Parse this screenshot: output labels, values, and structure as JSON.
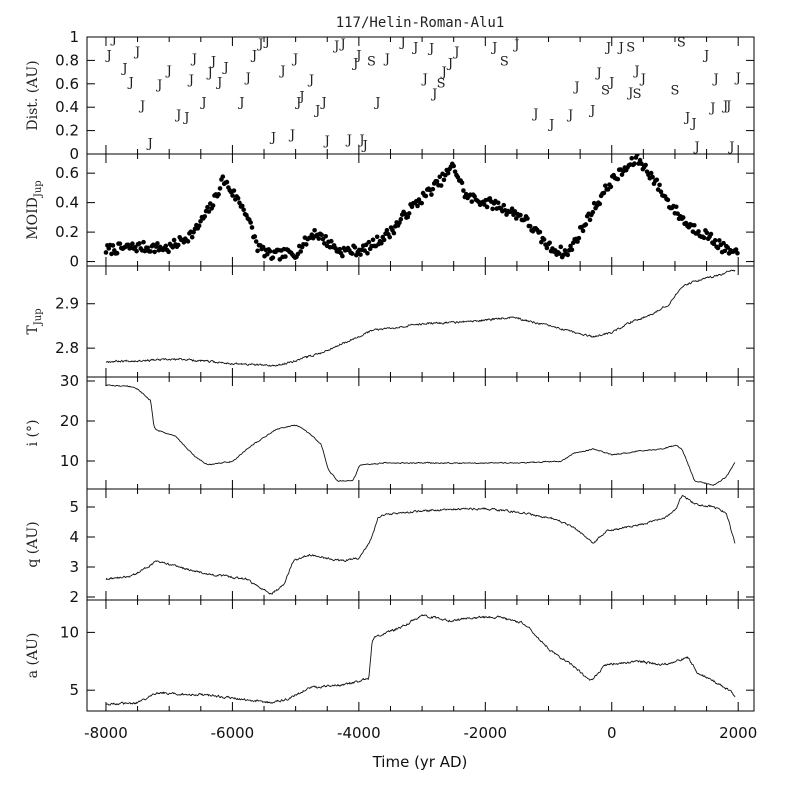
{
  "chart_data": {
    "type": "line",
    "title": "117/Helin-Roman-Alu1",
    "xlabel": "Time (yr AD)",
    "xlim": [
      -8300,
      2250
    ],
    "x_ticks": [
      "-8000",
      "-6000",
      "-4000",
      "-2000",
      "0",
      "2000"
    ],
    "panels": [
      {
        "id": "dist",
        "ylabel": "Dist. (AU)",
        "type": "scatter",
        "ylim": [
          0,
          1
        ],
        "y_ticks": [
          "0",
          "0.2",
          "0.4",
          "0.6",
          "0.8",
          "1"
        ],
        "series": [
          {
            "name": "J",
            "points": [
              [
                -7950,
                0.85
              ],
              [
                -7870,
                0.99
              ],
              [
                -7700,
                0.74
              ],
              [
                -7600,
                0.62
              ],
              [
                -7500,
                0.88
              ],
              [
                -7420,
                0.42
              ],
              [
                -7300,
                0.1
              ],
              [
                -7150,
                0.6
              ],
              [
                -7000,
                0.72
              ],
              [
                -6850,
                0.34
              ],
              [
                -6720,
                0.32
              ],
              [
                -6650,
                0.64
              ],
              [
                -6600,
                0.82
              ],
              [
                -6450,
                0.45
              ],
              [
                -6350,
                0.7
              ],
              [
                -6300,
                0.8
              ],
              [
                -6200,
                0.62
              ],
              [
                -6100,
                0.75
              ],
              [
                -5850,
                0.45
              ],
              [
                -5750,
                0.66
              ],
              [
                -5650,
                0.85
              ],
              [
                -5550,
                0.95
              ],
              [
                -5450,
                0.97
              ],
              [
                -5350,
                0.15
              ],
              [
                -5200,
                0.72
              ],
              [
                -5050,
                0.17
              ],
              [
                -5000,
                0.82
              ],
              [
                -4950,
                0.45
              ],
              [
                -4900,
                0.5
              ],
              [
                -4750,
                0.64
              ],
              [
                -4650,
                0.38
              ],
              [
                -4550,
                0.45
              ],
              [
                -4500,
                0.12
              ],
              [
                -4350,
                0.93
              ],
              [
                -4250,
                0.95
              ],
              [
                -4150,
                0.13
              ],
              [
                -4050,
                0.78
              ],
              [
                -4000,
                0.85
              ],
              [
                -3950,
                0.13
              ],
              [
                -3900,
                0.08
              ],
              [
                -3700,
                0.45
              ],
              [
                -3550,
                0.82
              ],
              [
                -3300,
                0.96
              ],
              [
                -3100,
                0.92
              ],
              [
                -2950,
                0.65
              ],
              [
                -2850,
                0.91
              ],
              [
                -2800,
                0.52
              ],
              [
                -2650,
                0.71
              ],
              [
                -2550,
                0.78
              ],
              [
                -2450,
                0.88
              ],
              [
                -1850,
                0.92
              ],
              [
                -1500,
                0.94
              ],
              [
                -1200,
                0.35
              ],
              [
                -950,
                0.26
              ],
              [
                -650,
                0.34
              ],
              [
                -550,
                0.58
              ],
              [
                -300,
                0.38
              ],
              [
                -200,
                0.7
              ],
              [
                -50,
                0.92
              ],
              [
                0,
                0.62
              ],
              [
                150,
                0.92
              ],
              [
                300,
                0.53
              ],
              [
                400,
                0.72
              ],
              [
                500,
                0.65
              ],
              [
                1200,
                0.32
              ],
              [
                1300,
                0.27
              ],
              [
                1350,
                0.07
              ],
              [
                1500,
                0.85
              ],
              [
                1600,
                0.4
              ],
              [
                1650,
                0.65
              ],
              [
                1800,
                0.42
              ],
              [
                1850,
                0.42
              ],
              [
                1900,
                0.07
              ],
              [
                2000,
                0.66
              ]
            ]
          },
          {
            "name": "S",
            "points": [
              [
                -3800,
                0.8
              ],
              [
                -2700,
                0.61
              ],
              [
                -1700,
                0.8
              ],
              [
                -100,
                0.55
              ],
              [
                300,
                0.92
              ],
              [
                400,
                0.52
              ],
              [
                1000,
                0.55
              ],
              [
                1100,
                0.96
              ]
            ]
          }
        ]
      },
      {
        "id": "moid",
        "ylabel": "MOID_Jup",
        "ylabel_main": "MOID",
        "ylabel_sub": "Jup",
        "type": "scatter",
        "ylim": [
          -0.03,
          0.73
        ],
        "y_ticks": [
          "0",
          "0.2",
          "0.4",
          "0.6"
        ],
        "knots": [
          [
            -8000,
            0.08
          ],
          [
            -7500,
            0.1
          ],
          [
            -7000,
            0.09
          ],
          [
            -6600,
            0.2
          ],
          [
            -6300,
            0.4
          ],
          [
            -6150,
            0.56
          ],
          [
            -5800,
            0.35
          ],
          [
            -5600,
            0.1
          ],
          [
            -5400,
            0.04
          ],
          [
            -5000,
            0.06
          ],
          [
            -4700,
            0.2
          ],
          [
            -4300,
            0.07
          ],
          [
            -3900,
            0.08
          ],
          [
            -3500,
            0.2
          ],
          [
            -3200,
            0.35
          ],
          [
            -2700,
            0.55
          ],
          [
            -2500,
            0.65
          ],
          [
            -2300,
            0.44
          ],
          [
            -1800,
            0.38
          ],
          [
            -1400,
            0.3
          ],
          [
            -1000,
            0.1
          ],
          [
            -700,
            0.05
          ],
          [
            -500,
            0.2
          ],
          [
            -300,
            0.35
          ],
          [
            0,
            0.55
          ],
          [
            200,
            0.62
          ],
          [
            400,
            0.7
          ],
          [
            600,
            0.6
          ],
          [
            900,
            0.4
          ],
          [
            1200,
            0.25
          ],
          [
            1500,
            0.18
          ],
          [
            1800,
            0.08
          ],
          [
            2000,
            0.04
          ]
        ],
        "noise": 0.035
      },
      {
        "id": "tjup",
        "ylabel": "T_Jup",
        "ylabel_main": "T",
        "ylabel_sub": "Jup",
        "type": "line",
        "ylim": [
          2.735,
          2.985
        ],
        "y_ticks": [
          "2.8",
          "2.9"
        ],
        "y_tick_values": [
          2.8,
          2.9
        ],
        "knots": [
          [
            -8000,
            2.77
          ],
          [
            -6800,
            2.775
          ],
          [
            -6000,
            2.765
          ],
          [
            -5300,
            2.76
          ],
          [
            -4600,
            2.79
          ],
          [
            -3800,
            2.84
          ],
          [
            -3000,
            2.855
          ],
          [
            -2200,
            2.86
          ],
          [
            -1600,
            2.87
          ],
          [
            -1000,
            2.85
          ],
          [
            -600,
            2.835
          ],
          [
            -300,
            2.825
          ],
          [
            0,
            2.835
          ],
          [
            300,
            2.86
          ],
          [
            600,
            2.875
          ],
          [
            900,
            2.9
          ],
          [
            1100,
            2.94
          ],
          [
            1400,
            2.955
          ],
          [
            1700,
            2.965
          ],
          [
            2000,
            2.98
          ]
        ],
        "noise": 0.004
      },
      {
        "id": "incl",
        "ylabel": "i (°)",
        "type": "line",
        "ylim": [
          3,
          31
        ],
        "y_ticks": [
          "10",
          "20",
          "30"
        ],
        "knots": [
          [
            -8000,
            29
          ],
          [
            -7550,
            28.5
          ],
          [
            -7300,
            25
          ],
          [
            -7250,
            18
          ],
          [
            -6900,
            16
          ],
          [
            -6600,
            11
          ],
          [
            -6400,
            9
          ],
          [
            -6000,
            10
          ],
          [
            -5700,
            14
          ],
          [
            -5300,
            18
          ],
          [
            -5000,
            19
          ],
          [
            -4800,
            17
          ],
          [
            -4600,
            14
          ],
          [
            -4500,
            8
          ],
          [
            -4350,
            5
          ],
          [
            -4100,
            5
          ],
          [
            -4000,
            9
          ],
          [
            -3600,
            9.5
          ],
          [
            -2500,
            9.5
          ],
          [
            -1500,
            9.5
          ],
          [
            -800,
            10
          ],
          [
            -600,
            12
          ],
          [
            -300,
            13
          ],
          [
            0,
            11.5
          ],
          [
            400,
            12.5
          ],
          [
            800,
            13
          ],
          [
            1000,
            14
          ],
          [
            1100,
            13
          ],
          [
            1300,
            5
          ],
          [
            1600,
            4
          ],
          [
            1800,
            6
          ],
          [
            1950,
            10
          ]
        ],
        "noise": 0.25
      },
      {
        "id": "q",
        "ylabel": "q (AU)",
        "type": "line",
        "ylim": [
          1.9,
          5.6
        ],
        "y_ticks": [
          "2",
          "3",
          "4",
          "5"
        ],
        "knots": [
          [
            -8000,
            2.6
          ],
          [
            -7600,
            2.7
          ],
          [
            -7200,
            3.2
          ],
          [
            -6500,
            2.8
          ],
          [
            -5800,
            2.6
          ],
          [
            -5400,
            2.1
          ],
          [
            -5200,
            2.4
          ],
          [
            -5050,
            3.2
          ],
          [
            -4800,
            3.4
          ],
          [
            -4300,
            3.2
          ],
          [
            -4000,
            3.3
          ],
          [
            -3800,
            4.0
          ],
          [
            -3700,
            4.7
          ],
          [
            -3400,
            4.8
          ],
          [
            -2800,
            4.9
          ],
          [
            -2000,
            4.95
          ],
          [
            -1400,
            4.8
          ],
          [
            -900,
            4.6
          ],
          [
            -600,
            4.3
          ],
          [
            -300,
            3.8
          ],
          [
            -100,
            4.2
          ],
          [
            400,
            4.4
          ],
          [
            800,
            4.6
          ],
          [
            1000,
            4.9
          ],
          [
            1100,
            5.4
          ],
          [
            1300,
            5.1
          ],
          [
            1600,
            5.0
          ],
          [
            1800,
            4.8
          ],
          [
            1950,
            3.7
          ]
        ],
        "noise": 0.06
      },
      {
        "id": "a",
        "ylabel": "a (AU)",
        "type": "line",
        "ylim": [
          3.2,
          12.8
        ],
        "y_ticks": [
          "5",
          "10"
        ],
        "y_tick_values": [
          5,
          10
        ],
        "knots": [
          [
            -8000,
            3.8
          ],
          [
            -7500,
            3.9
          ],
          [
            -7200,
            4.8
          ],
          [
            -6500,
            4.6
          ],
          [
            -5800,
            4.2
          ],
          [
            -5400,
            3.9
          ],
          [
            -5100,
            4.3
          ],
          [
            -4800,
            5.2
          ],
          [
            -4200,
            5.5
          ],
          [
            -3850,
            6.0
          ],
          [
            -3800,
            9.5
          ],
          [
            -3400,
            10.3
          ],
          [
            -3000,
            11.5
          ],
          [
            -2600,
            11.0
          ],
          [
            -2200,
            11.3
          ],
          [
            -1800,
            11.3
          ],
          [
            -1400,
            10.8
          ],
          [
            -1000,
            8.5
          ],
          [
            -600,
            7.0
          ],
          [
            -350,
            5.8
          ],
          [
            -100,
            7.2
          ],
          [
            400,
            7.5
          ],
          [
            800,
            7.2
          ],
          [
            1200,
            7.8
          ],
          [
            1350,
            6.5
          ],
          [
            1600,
            5.8
          ],
          [
            1850,
            5.0
          ],
          [
            1950,
            4.4
          ]
        ],
        "noise": 0.18
      }
    ]
  }
}
